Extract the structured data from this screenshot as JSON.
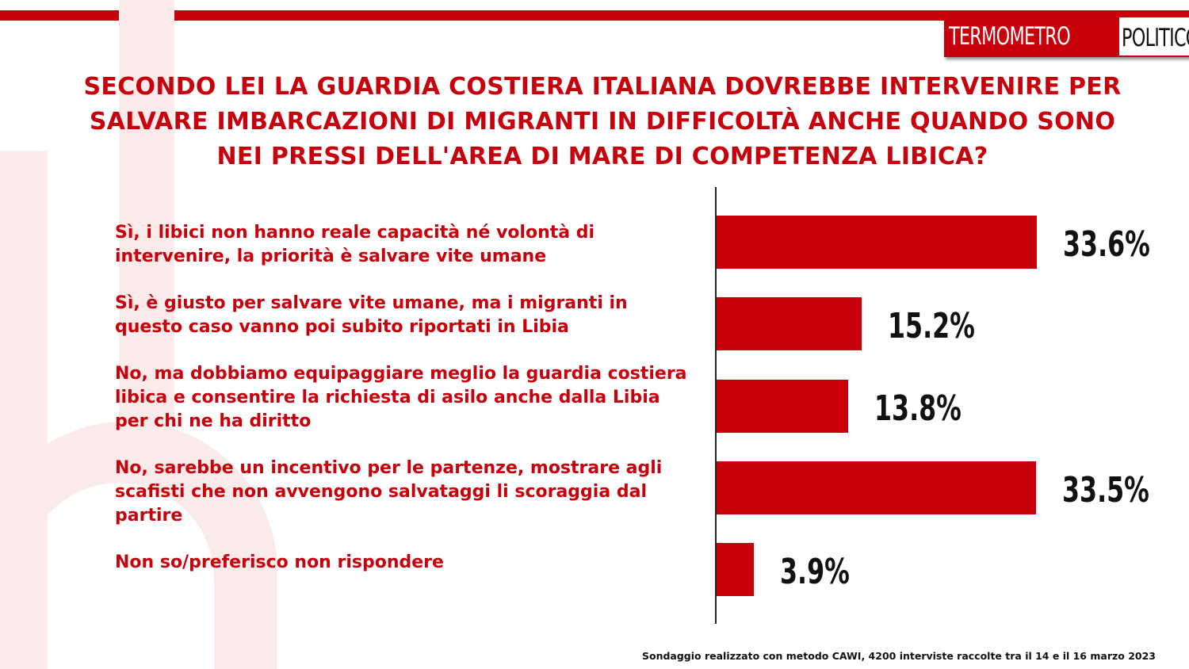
{
  "logo": {
    "part1": "TERMOMETRO",
    "part2": "POLITICO"
  },
  "colors": {
    "accent": "#c8000b",
    "text": "#111111"
  },
  "chart_data": {
    "type": "bar",
    "orientation": "horizontal",
    "title": "SECONDO LEI LA GUARDIA COSTIERA ITALIANA DOVREBBE INTERVENIRE PER SALVARE IMBARCAZIONI DI MIGRANTI IN DIFFICOLTÀ ANCHE QUANDO SONO NEI PRESSI DELL'AREA DI MARE DI COMPETENZA LIBICA?",
    "categories": [
      "Sì, i libici non hanno reale capacità  né volontà  di intervenire, la priorità  è salvare vite umane",
      "Sì, è giusto per salvare vite umane, ma i migranti in questo caso vanno poi subito riportati in Libia",
      "No, ma dobbiamo equipaggiare meglio la guardia costiera libica e consentire la richiesta di asilo anche dalla Libia per chi ne ha diritto",
      "No, sarebbe un incentivo per le partenze, mostrare agli scafisti che non avvengono salvataggi li scoraggia dal partire",
      "Non so/preferisco non rispondere"
    ],
    "values": [
      33.6,
      15.2,
      13.8,
      33.5,
      3.9
    ],
    "value_labels": [
      "33.6%",
      "15.2%",
      "13.8%",
      "33.5%",
      "3.9%"
    ],
    "xlim": [
      0,
      50
    ],
    "grid": false,
    "legend": "none"
  },
  "footnote": "Sondaggio realizzato con metodo CAWI, 4200 interviste raccolte tra il 14 e il 16 marzo 2023"
}
